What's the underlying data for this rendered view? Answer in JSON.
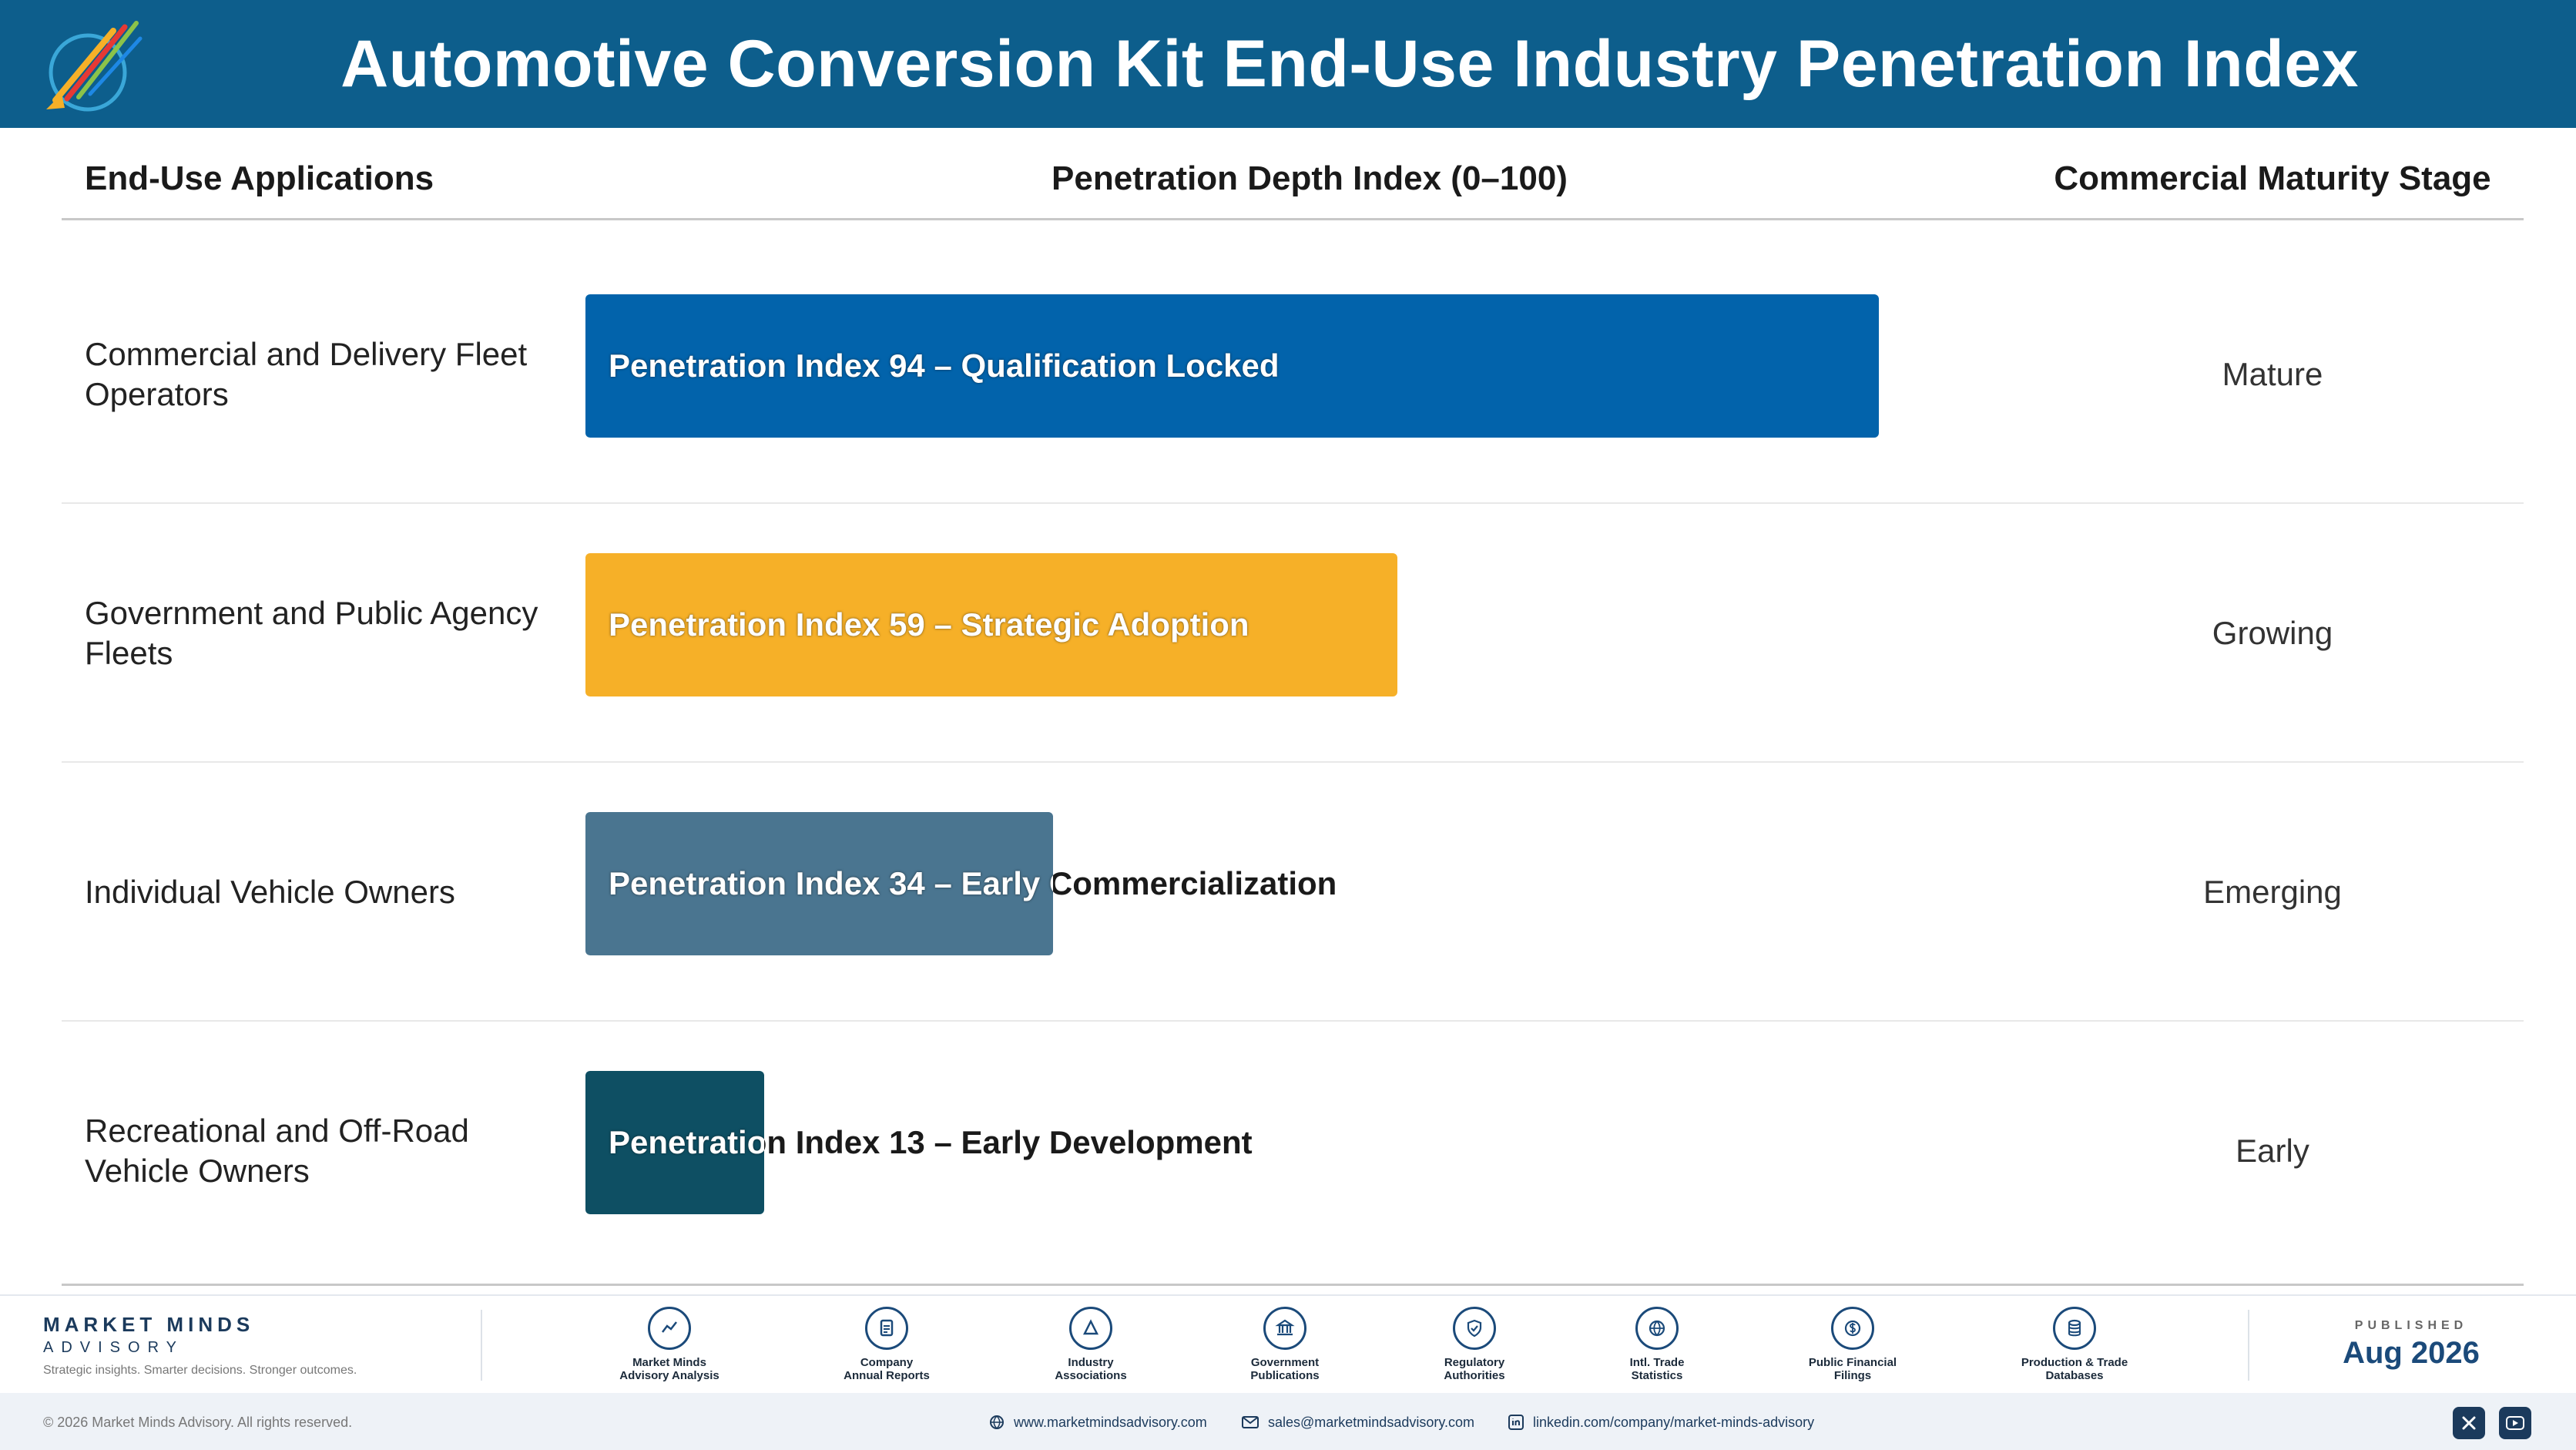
{
  "header": {
    "title": "Automotive Conversion Kit End-Use Industry Penetration Index",
    "logo_icon": "market-minds-logo"
  },
  "columns": {
    "left": "End-Use Applications",
    "middle": "Penetration Depth Index (0–100)",
    "right": "Commercial Maturity Stage"
  },
  "chart_data": {
    "type": "bar",
    "orientation": "horizontal",
    "xlim": [
      0,
      100
    ],
    "categories": [
      "Commercial and Delivery Fleet Operators",
      "Government and Public Agency Fleets",
      "Individual Vehicle Owners",
      "Recreational and Off-Road Vehicle Owners"
    ],
    "values": [
      94,
      59,
      34,
      13
    ],
    "bar_labels": [
      "Penetration Index 94 – Qualification Locked",
      "Penetration Index 59 – Strategic Adoption",
      "Penetration Index 34 – Early Commercialization",
      "Penetration Index 13 – Early Development"
    ],
    "stages": [
      "Mature",
      "Growing",
      "Emerging",
      "Early"
    ],
    "colors": [
      "#0263ab",
      "#f6b028",
      "#4a7590",
      "#0e4f63"
    ]
  },
  "footer": {
    "brand_name": "MARKET MINDS",
    "brand_sub": "ADVISORY",
    "tagline": "Strategic insights. Smarter decisions. Stronger outcomes.",
    "sources": [
      {
        "label": "Market Minds\nAdvisory Analysis",
        "icon": "chart-line-icon"
      },
      {
        "label": "Company\nAnnual Reports",
        "icon": "document-icon"
      },
      {
        "label": "Industry\nAssociations",
        "icon": "network-icon"
      },
      {
        "label": "Government\nPublications",
        "icon": "government-building-icon"
      },
      {
        "label": "Regulatory\nAuthorities",
        "icon": "shield-icon"
      },
      {
        "label": "Intl. Trade\nStatistics",
        "icon": "globe-icon"
      },
      {
        "label": "Public Financial\nFilings",
        "icon": "dollar-icon"
      },
      {
        "label": "Production & Trade\nDatabases",
        "icon": "database-icon"
      }
    ],
    "published_label": "PUBLISHED",
    "published_date": "Aug 2026",
    "copyright": "© 2026 Market Minds Advisory. All rights reserved.",
    "website": "www.marketmindsadvisory.com",
    "email": "sales@marketmindsadvisory.com",
    "linkedin": "linkedin.com/company/market-minds-advisory",
    "social": [
      "x-icon",
      "youtube-icon"
    ]
  }
}
